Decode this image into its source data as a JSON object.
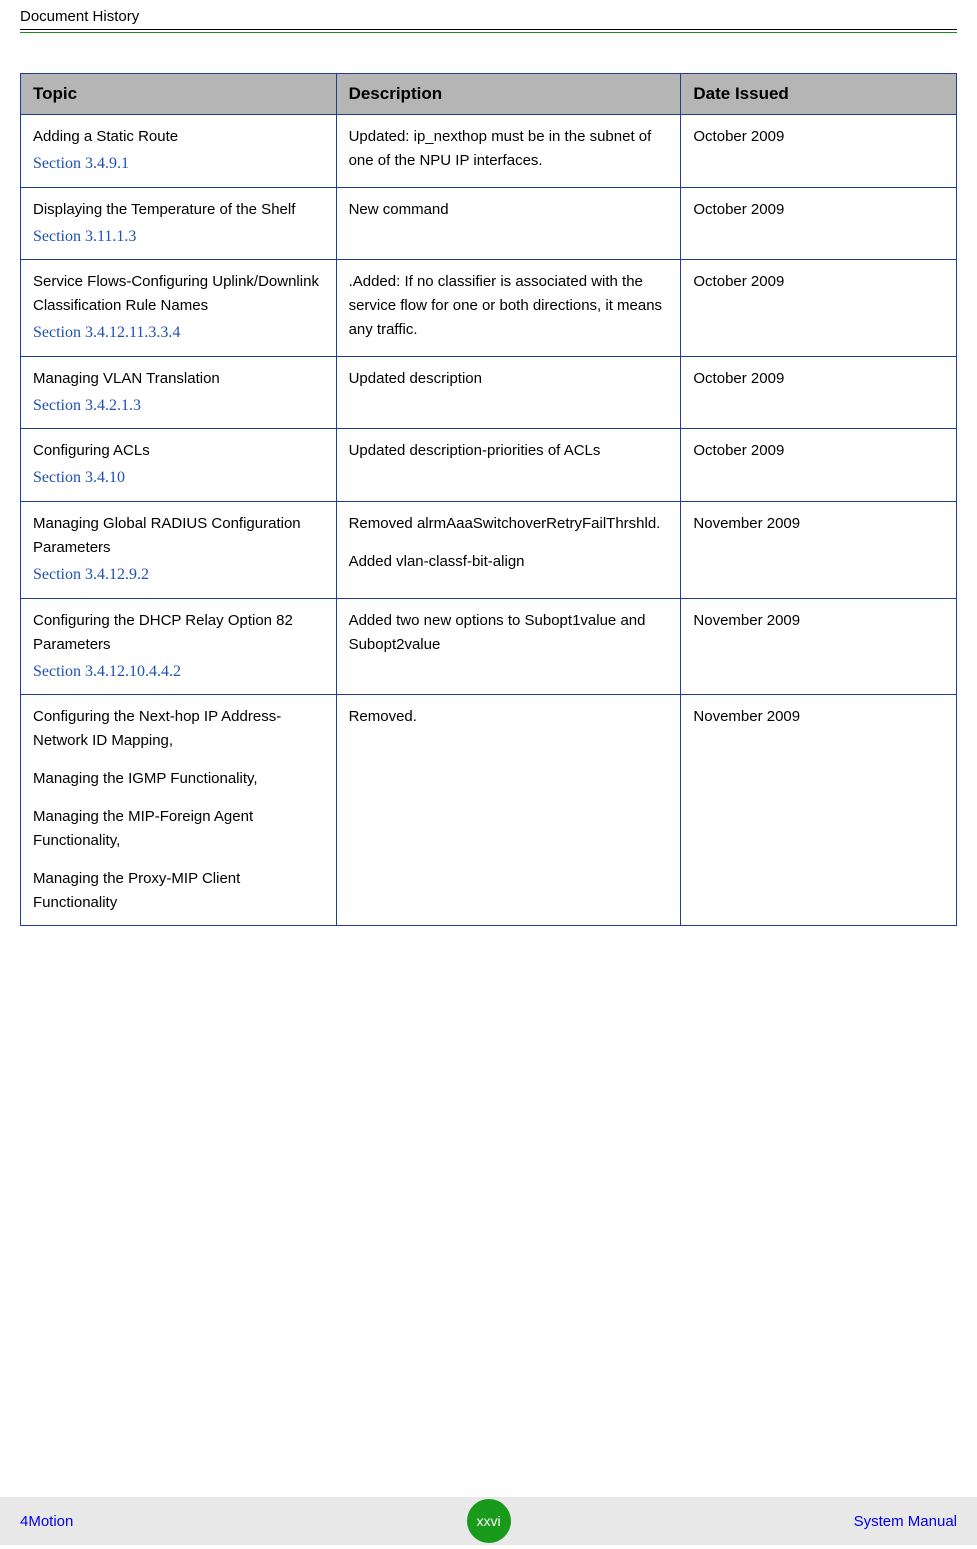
{
  "header": {
    "title": "Document History"
  },
  "table": {
    "columns": [
      "Topic",
      "Description",
      "Date Issued"
    ],
    "rows": [
      {
        "topic": "Adding a Static Route",
        "section": "Section 3.4.9.1",
        "description": "Updated: ip_nexthop must be in the subnet of one of the NPU IP interfaces.",
        "date": "October 2009"
      },
      {
        "topic": "Displaying the Temperature of the Shelf",
        "section": "Section 3.11.1.3",
        "description": "New command",
        "date": "October 2009"
      },
      {
        "topic": "Service Flows-Configuring Uplink/Downlink Classification Rule Names",
        "section": "Section 3.4.12.11.3.3.4",
        "description": ".Added: If no classifier is associated with the service flow for one or both directions, it means any traffic.",
        "date": "October 2009"
      },
      {
        "topic": "Managing VLAN Translation",
        "section": "Section 3.4.2.1.3",
        "description": "Updated description",
        "date": "October 2009"
      },
      {
        "topic": "Configuring ACLs",
        "section": "Section 3.4.10",
        "description": "Updated description-priorities of ACLs",
        "date": "October 2009"
      },
      {
        "topic": "Managing Global RADIUS Configuration Parameters",
        "section": "Section 3.4.12.9.2",
        "description_parts": [
          "Removed alrmAaaSwitchoverRetryFailThrshld.",
          "Added vlan-classf-bit-align"
        ],
        "date": "November 2009"
      },
      {
        "topic": "Configuring the DHCP Relay Option 82 Parameters",
        "section": "Section 3.4.12.10.4.4.2",
        "description": "Added two new options to Subopt1value and Subopt2value",
        "date": "November 2009"
      },
      {
        "topic_parts": [
          "Configuring the Next-hop IP Address-Network ID Mapping,",
          " Managing the IGMP Functionality,",
          " Managing the MIP-Foreign Agent Functionality,",
          "Managing the Proxy-MIP Client Functionality"
        ],
        "description": "Removed.",
        "date": "November 2009"
      }
    ]
  },
  "footer": {
    "left": "4Motion",
    "center": "xxvi",
    "right": "System Manual"
  },
  "colors": {
    "header_bg": "#b5b5b5",
    "border": "#1e3e8f",
    "link": "#2050b0",
    "footer_bg": "#e8e8e8",
    "footer_link": "#0000ee",
    "badge": "#1a9a1a",
    "green_rule": "#1a8a1a"
  }
}
